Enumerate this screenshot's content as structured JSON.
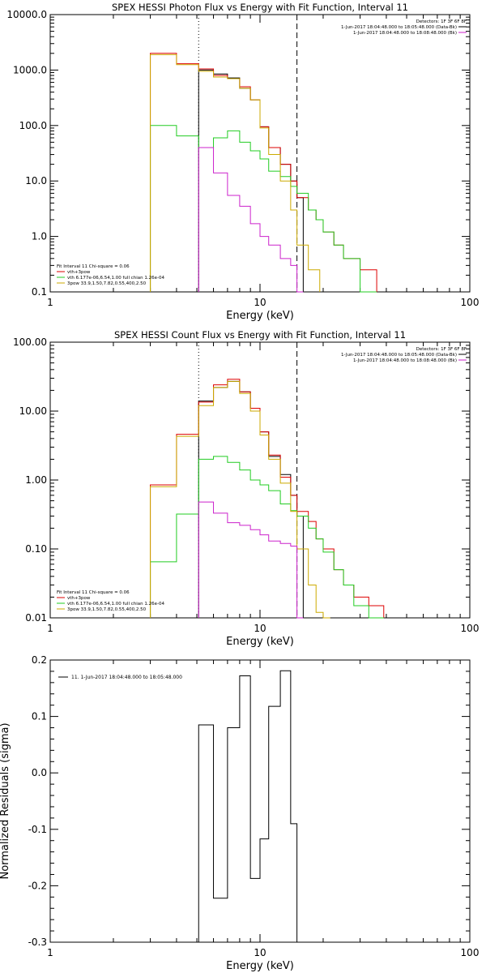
{
  "chart_data": [
    {
      "type": "line",
      "title": "SPEX HESSI Photon Flux vs Energy with Fit Function, Interval 11",
      "xlabel": "Energy (keV)",
      "ylabel": "",
      "xscale": "log",
      "yscale": "log",
      "xlim": [
        1,
        100
      ],
      "ylim": [
        0.1,
        10000
      ],
      "xticks": [
        {
          "v": 1,
          "label": "1"
        },
        {
          "v": 10,
          "label": "10"
        },
        {
          "v": 100,
          "label": "100"
        }
      ],
      "yticks": [
        {
          "v": 0.1,
          "label": "0.1"
        },
        {
          "v": 1,
          "label": "1.0"
        },
        {
          "v": 10,
          "label": "10.0"
        },
        {
          "v": 100,
          "label": "100.0"
        },
        {
          "v": 1000,
          "label": "1000.0"
        },
        {
          "v": 10000,
          "label": "10000.0"
        }
      ],
      "vlines": [
        {
          "x": 5.1,
          "style": "dotted"
        },
        {
          "x": 15,
          "style": "dashed"
        }
      ],
      "legend_top": [
        {
          "text": "Detectors: 1F 3F 6F 8F",
          "color": "#000000"
        },
        {
          "text": "1-Jun-2017 18:04:48.000 to 18:05:48.000 (Data-Bk)",
          "color": "#000000"
        },
        {
          "text": "1-Jun-2017 18:04:48.000 to 18:08:48.000 (Bk)",
          "color": "#cc22cc"
        }
      ],
      "legend_bottom": [
        {
          "text": "Fit Interval 11   Chi-square = 0.06",
          "color": "#000000"
        },
        {
          "text": "vth+3pow",
          "color": "#dd0000"
        },
        {
          "text": "vth 6.177e-06,6.54,1.00   full chian 1.26e-04",
          "color": "#22cc22"
        },
        {
          "text": "3pow 33.9,1.50,7.82,0.55,400,2.50",
          "color": "#ccaa00"
        }
      ],
      "series": [
        {
          "color": "#000000",
          "x": [
            5.1,
            6.0,
            7.0,
            8.0,
            9.0,
            10.0,
            11.0,
            12.5,
            14.0,
            15.0
          ],
          "y": [
            1000,
            850,
            720,
            470,
            290,
            95,
            40,
            20,
            10,
            5
          ]
        },
        {
          "color": "#dd0000",
          "x": [
            3.0,
            4.0,
            5.1,
            6.0,
            7.0,
            8.0,
            9.0,
            10.0,
            11.0,
            12.5,
            14.0,
            15.0,
            17.0,
            18.5,
            20.0,
            22.5,
            25.0,
            30.0
          ],
          "y": [
            2000,
            1300,
            1050,
            800,
            700,
            500,
            290,
            95,
            40,
            20,
            10,
            5,
            3,
            2,
            1.2,
            0.7,
            0.4,
            0.25
          ]
        },
        {
          "color": "#22cc22",
          "x": [
            3.0,
            4.0,
            5.1,
            6.0,
            7.0,
            8.0,
            9.0,
            10.0,
            11.0,
            12.5,
            14.0,
            15.0,
            17.0,
            18.5,
            20.0,
            22.5,
            25.0,
            30.0
          ],
          "y": [
            100,
            65,
            40,
            60,
            80,
            50,
            35,
            25,
            15,
            12,
            8,
            6,
            3,
            2,
            1.2,
            0.7,
            0.4,
            0.1
          ]
        },
        {
          "color": "#ccaa00",
          "x": [
            3.0,
            4.0,
            5.1,
            6.0,
            7.0,
            8.0,
            9.0,
            10.0,
            11.0,
            12.5,
            14.0,
            15.0,
            17.0
          ],
          "y": [
            1900,
            1250,
            950,
            750,
            700,
            470,
            290,
            90,
            30,
            10,
            3,
            0.7,
            0.25
          ]
        },
        {
          "color": "#cc22cc",
          "x": [
            5.1,
            6.0,
            7.0,
            8.0,
            9.0,
            10.0,
            11.0,
            12.5,
            14.0,
            15.0
          ],
          "y": [
            40,
            14,
            5.5,
            3.5,
            1.7,
            1.0,
            0.7,
            0.4,
            0.3,
            0.1
          ]
        }
      ]
    },
    {
      "type": "line",
      "title": "SPEX HESSI Count Flux vs Energy with Fit Function, Interval 11",
      "xlabel": "Energy (keV)",
      "ylabel": "",
      "xscale": "log",
      "yscale": "log",
      "xlim": [
        1,
        100
      ],
      "ylim": [
        0.01,
        100
      ],
      "xticks": [
        {
          "v": 1,
          "label": "1"
        },
        {
          "v": 10,
          "label": "10"
        },
        {
          "v": 100,
          "label": "100"
        }
      ],
      "yticks": [
        {
          "v": 0.01,
          "label": "0.01"
        },
        {
          "v": 0.1,
          "label": "0.10"
        },
        {
          "v": 1,
          "label": "1.00"
        },
        {
          "v": 10,
          "label": "10.00"
        },
        {
          "v": 100,
          "label": "100.00"
        }
      ],
      "vlines": [
        {
          "x": 5.1,
          "style": "dotted"
        },
        {
          "x": 15,
          "style": "dashed"
        }
      ],
      "legend_top": [
        {
          "text": "Detectors: 1F 3F 6F 8F",
          "color": "#000000"
        },
        {
          "text": "1-Jun-2017 18:04:48.000 to 18:05:48.000 (Data-Bk)",
          "color": "#000000"
        },
        {
          "text": "1-Jun-2017 18:04:48.000 to 18:08:48.000 (Bk)",
          "color": "#cc22cc"
        }
      ],
      "legend_bottom": [
        {
          "text": "Fit Interval 11   Chi-square = 0.06",
          "color": "#000000"
        },
        {
          "text": "vth+3pow",
          "color": "#dd0000"
        },
        {
          "text": "vth 6.177e-06,6.54,1.00   full chian 1.26e-04",
          "color": "#22cc22"
        },
        {
          "text": "3pow 33.9,1.50,7.82,0.55,400,2.50",
          "color": "#ccaa00"
        }
      ],
      "series": [
        {
          "color": "#000000",
          "x": [
            5.1,
            6.0,
            7.0,
            8.0,
            9.0,
            10.0,
            11.0,
            12.5,
            14.0,
            15.0
          ],
          "y": [
            14,
            22,
            27,
            19,
            11,
            5,
            2.2,
            1.2,
            0.6,
            0.3
          ]
        },
        {
          "color": "#dd0000",
          "x": [
            3.0,
            4.0,
            5.1,
            6.0,
            7.0,
            8.0,
            9.0,
            10.0,
            11.0,
            12.5,
            14.0,
            15.0,
            17.0,
            18.5,
            20.0,
            22.5,
            25.0,
            28.0,
            33.0
          ],
          "y": [
            0.85,
            4.6,
            13.5,
            24,
            29,
            19,
            11,
            5,
            2.3,
            1.1,
            0.6,
            0.35,
            0.25,
            0.14,
            0.1,
            0.05,
            0.03,
            0.02,
            0.015
          ]
        },
        {
          "color": "#22cc22",
          "x": [
            3.0,
            4.0,
            5.1,
            6.0,
            7.0,
            8.0,
            9.0,
            10.0,
            11.0,
            12.5,
            14.0,
            15.0,
            17.0,
            18.5,
            20.0,
            22.5,
            25.0,
            28.0,
            33.0
          ],
          "y": [
            0.065,
            0.32,
            2.0,
            2.2,
            1.8,
            1.4,
            1.0,
            0.85,
            0.7,
            0.45,
            0.36,
            0.3,
            0.2,
            0.14,
            0.09,
            0.05,
            0.03,
            0.015,
            0.01
          ]
        },
        {
          "color": "#ccaa00",
          "x": [
            3.0,
            4.0,
            5.1,
            6.0,
            7.0,
            8.0,
            9.0,
            10.0,
            11.0,
            12.5,
            14.0,
            15.0,
            17.0,
            18.5,
            20.0
          ],
          "y": [
            0.8,
            4.3,
            12,
            22,
            27,
            18,
            10,
            4.5,
            2.0,
            0.9,
            0.35,
            0.1,
            0.03,
            0.012,
            0.01
          ]
        },
        {
          "color": "#cc22cc",
          "x": [
            5.1,
            6.0,
            7.0,
            8.0,
            9.0,
            10.0,
            11.0,
            12.5,
            14.0,
            15.0
          ],
          "y": [
            0.48,
            0.33,
            0.24,
            0.22,
            0.19,
            0.16,
            0.13,
            0.12,
            0.11,
            0.01
          ]
        }
      ]
    },
    {
      "type": "line",
      "title": "",
      "xlabel": "Energy (keV)",
      "ylabel": "Normalized Residuals (sigma)",
      "xscale": "log",
      "yscale": "linear",
      "xlim": [
        1,
        100
      ],
      "ylim": [
        -0.3,
        0.2
      ],
      "xticks": [
        {
          "v": 1,
          "label": "1"
        },
        {
          "v": 10,
          "label": "10"
        },
        {
          "v": 100,
          "label": "100"
        }
      ],
      "yticks": [
        {
          "v": -0.3,
          "label": "-0.3"
        },
        {
          "v": -0.2,
          "label": "-0.2"
        },
        {
          "v": -0.1,
          "label": "-0.1"
        },
        {
          "v": 0.0,
          "label": "0.0"
        },
        {
          "v": 0.1,
          "label": "0.1"
        },
        {
          "v": 0.2,
          "label": "0.2"
        }
      ],
      "legend_top": [
        {
          "text": "11.  1-Jun-2017 18:04:48.000 to 18:05:48.000",
          "color": "#000000"
        }
      ],
      "series": [
        {
          "color": "#000000",
          "x": [
            5.1,
            6.0,
            7.0,
            8.0,
            9.0,
            10.0,
            11.0,
            12.5,
            14.0,
            15.0
          ],
          "y": [
            0.085,
            -0.222,
            0.08,
            0.172,
            -0.187,
            -0.117,
            0.118,
            0.181,
            -0.09,
            -0.3
          ]
        }
      ]
    }
  ]
}
